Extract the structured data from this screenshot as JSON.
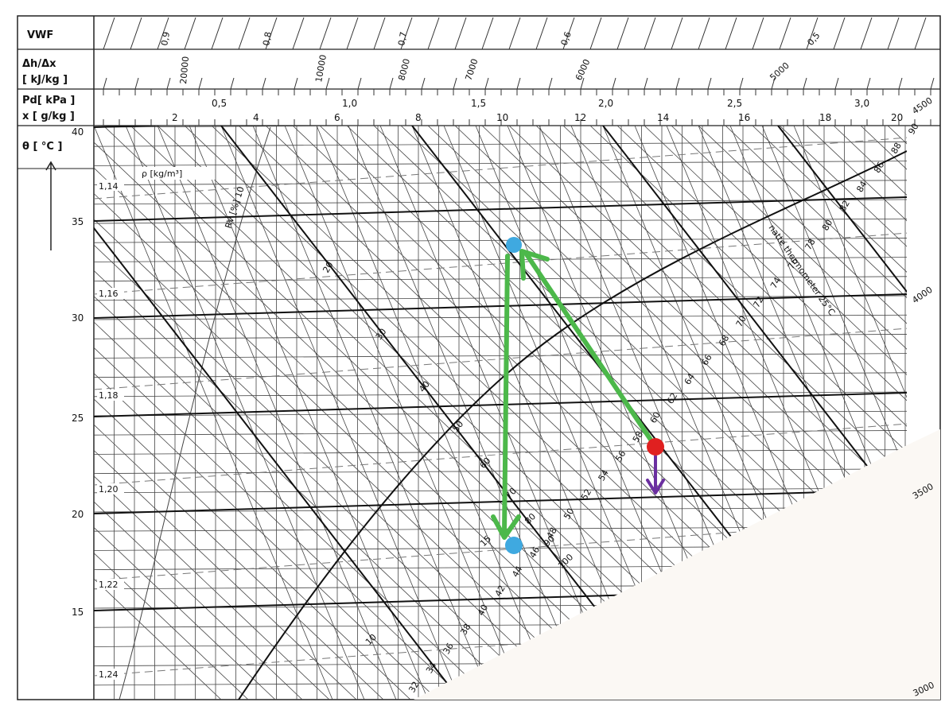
{
  "header_rows": {
    "vwf_label": "VWF",
    "vwf_values": [
      "0,9",
      "0,8",
      "0,7",
      "0,6",
      "0,5"
    ],
    "enthalpy_ratio_label": "Δh/Δx",
    "enthalpy_ratio_unit": "[ kJ/kg ]",
    "enthalpy_ratio_values": [
      "20000",
      "10000",
      "8000",
      "7000",
      "6000",
      "5000"
    ],
    "pd_label": "Pd[ kPa ]",
    "pd_values": [
      "0,5",
      "1,0",
      "1,5",
      "2,0",
      "2,5",
      "3,0"
    ],
    "x_label": "x  [ g/kg ]",
    "x_values": [
      "2",
      "4",
      "6",
      "8",
      "10",
      "12",
      "14",
      "16",
      "18",
      "20"
    ]
  },
  "axes": {
    "theta_label": "θ [ °C ]",
    "theta_values": [
      "40",
      "35",
      "30",
      "25",
      "20",
      "15"
    ],
    "density_label": "ρ [kg/m³]",
    "density_values": [
      "1,14",
      "1,16",
      "1,18",
      "1,20",
      "1,22",
      "1,24"
    ],
    "rv_label": "RV [%] 10",
    "rv_values": [
      "20",
      "30",
      "40",
      "50",
      "60",
      "70",
      "80",
      "90",
      "100"
    ],
    "wet_bulb_label": "natte thermometer 25°C",
    "wet_bulb_small": [
      "15",
      "10"
    ],
    "enthalpy_values": [
      "32",
      "34",
      "36",
      "38",
      "40",
      "42",
      "44",
      "46",
      "48",
      "50",
      "52",
      "54",
      "56",
      "58",
      "60",
      "62",
      "64",
      "66",
      "68",
      "70",
      "72",
      "74",
      "76",
      "78",
      "80",
      "82",
      "84",
      "86",
      "88",
      "90"
    ],
    "right_scale_values": [
      "4500",
      "4000",
      "3500",
      "3000"
    ]
  },
  "markers": {
    "point_top_color": "#3fa9e0",
    "point_bottom_color": "#3fa9e0",
    "point_start_color": "#e02020",
    "arrow_green_color": "#4cb84a",
    "arrow_purple_color": "#6b2fa0"
  }
}
